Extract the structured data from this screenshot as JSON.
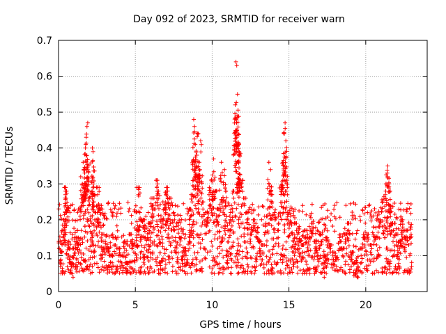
{
  "chart_data": {
    "type": "scatter",
    "title": "Day 092 of 2023, SRMTID for receiver warn",
    "xlabel": "GPS time / hours",
    "ylabel": "SRMTID / TECUs",
    "xlim": [
      0,
      24
    ],
    "ylim": [
      0,
      0.7
    ],
    "xticks": [
      0,
      5,
      10,
      15,
      20
    ],
    "xtick_labels": [
      "0",
      "5",
      "10",
      "15",
      "20"
    ],
    "yticks": [
      0,
      0.1,
      0.2,
      0.3,
      0.4,
      0.5,
      0.6,
      0.7
    ],
    "ytick_labels": [
      "0",
      "0.1",
      "0.2",
      "0.3",
      "0.4",
      "0.5",
      "0.6",
      "0.7"
    ],
    "grid": true,
    "marker": "+",
    "marker_color": "#ff0000",
    "data_span_hours": [
      0,
      23
    ],
    "series": [
      {
        "name": "SRMTID",
        "points": [
          [
            0.05,
            0.12
          ],
          [
            0.15,
            0.09
          ],
          [
            0.3,
            0.15
          ],
          [
            0.4,
            0.18
          ],
          [
            0.5,
            0.2
          ],
          [
            0.45,
            0.27
          ],
          [
            0.5,
            0.26
          ],
          [
            0.7,
            0.12
          ],
          [
            0.8,
            0.06
          ],
          [
            0.9,
            0.05
          ],
          [
            1.0,
            0.1
          ],
          [
            1.1,
            0.13
          ],
          [
            1.3,
            0.15
          ],
          [
            1.4,
            0.21
          ],
          [
            1.55,
            0.3
          ],
          [
            1.6,
            0.36
          ],
          [
            1.7,
            0.33
          ],
          [
            1.75,
            0.4
          ],
          [
            1.8,
            0.43
          ],
          [
            1.85,
            0.46
          ],
          [
            1.9,
            0.47
          ],
          [
            1.95,
            0.26
          ],
          [
            2.1,
            0.21
          ],
          [
            2.2,
            0.4
          ],
          [
            2.25,
            0.39
          ],
          [
            2.3,
            0.25
          ],
          [
            2.45,
            0.2
          ],
          [
            2.55,
            0.27
          ],
          [
            2.7,
            0.22
          ],
          [
            2.9,
            0.14
          ],
          [
            3.1,
            0.12
          ],
          [
            3.3,
            0.1
          ],
          [
            3.5,
            0.08
          ],
          [
            3.7,
            0.13
          ],
          [
            3.9,
            0.1
          ],
          [
            4.1,
            0.08
          ],
          [
            4.3,
            0.12
          ],
          [
            4.5,
            0.06
          ],
          [
            4.7,
            0.14
          ],
          [
            4.9,
            0.11
          ],
          [
            5.1,
            0.15
          ],
          [
            5.2,
            0.27
          ],
          [
            5.3,
            0.2
          ],
          [
            5.5,
            0.18
          ],
          [
            5.7,
            0.13
          ],
          [
            5.9,
            0.17
          ],
          [
            6.1,
            0.24
          ],
          [
            6.2,
            0.21
          ],
          [
            6.4,
            0.29
          ],
          [
            6.5,
            0.28
          ],
          [
            6.7,
            0.18
          ],
          [
            6.9,
            0.23
          ],
          [
            7.0,
            0.27
          ],
          [
            7.1,
            0.26
          ],
          [
            7.3,
            0.24
          ],
          [
            7.5,
            0.22
          ],
          [
            7.7,
            0.19
          ],
          [
            7.9,
            0.13
          ],
          [
            8.1,
            0.07
          ],
          [
            8.3,
            0.1
          ],
          [
            8.5,
            0.14
          ],
          [
            8.6,
            0.21
          ],
          [
            8.7,
            0.25
          ],
          [
            8.8,
            0.48
          ],
          [
            8.85,
            0.46
          ],
          [
            8.9,
            0.41
          ],
          [
            9.0,
            0.38
          ],
          [
            9.1,
            0.44
          ],
          [
            9.2,
            0.34
          ],
          [
            9.25,
            0.42
          ],
          [
            9.4,
            0.23
          ],
          [
            9.6,
            0.2
          ],
          [
            9.8,
            0.27
          ],
          [
            9.95,
            0.31
          ],
          [
            10.1,
            0.37
          ],
          [
            10.2,
            0.26
          ],
          [
            10.4,
            0.21
          ],
          [
            10.6,
            0.36
          ],
          [
            10.8,
            0.34
          ],
          [
            10.9,
            0.28
          ],
          [
            11.0,
            0.08
          ],
          [
            11.1,
            0.15
          ],
          [
            11.2,
            0.22
          ],
          [
            11.4,
            0.26
          ],
          [
            11.5,
            0.52
          ],
          [
            11.55,
            0.64
          ],
          [
            11.6,
            0.63
          ],
          [
            11.65,
            0.55
          ],
          [
            11.7,
            0.44
          ],
          [
            11.75,
            0.41
          ],
          [
            11.8,
            0.38
          ],
          [
            11.9,
            0.29
          ],
          [
            12.1,
            0.24
          ],
          [
            12.3,
            0.2
          ],
          [
            12.5,
            0.14
          ],
          [
            12.7,
            0.18
          ],
          [
            12.9,
            0.15
          ],
          [
            13.1,
            0.12
          ],
          [
            13.3,
            0.11
          ],
          [
            13.5,
            0.19
          ],
          [
            13.7,
            0.3
          ],
          [
            13.8,
            0.34
          ],
          [
            13.9,
            0.25
          ],
          [
            14.1,
            0.2
          ],
          [
            14.3,
            0.15
          ],
          [
            14.5,
            0.29
          ],
          [
            14.6,
            0.36
          ],
          [
            14.7,
            0.44
          ],
          [
            14.75,
            0.47
          ],
          [
            14.8,
            0.42
          ],
          [
            14.9,
            0.27
          ],
          [
            15.1,
            0.19
          ],
          [
            15.3,
            0.14
          ],
          [
            15.5,
            0.17
          ],
          [
            15.7,
            0.12
          ],
          [
            15.9,
            0.11
          ],
          [
            16.1,
            0.15
          ],
          [
            16.3,
            0.13
          ],
          [
            16.5,
            0.17
          ],
          [
            16.7,
            0.12
          ],
          [
            16.9,
            0.1
          ],
          [
            17.1,
            0.14
          ],
          [
            17.3,
            0.08
          ],
          [
            17.5,
            0.13
          ],
          [
            17.7,
            0.11
          ],
          [
            17.9,
            0.09
          ],
          [
            18.1,
            0.07
          ],
          [
            18.3,
            0.12
          ],
          [
            18.5,
            0.1
          ],
          [
            18.7,
            0.14
          ],
          [
            18.9,
            0.17
          ],
          [
            19.1,
            0.09
          ],
          [
            19.3,
            0.06
          ],
          [
            19.5,
            0.04
          ],
          [
            19.7,
            0.1
          ],
          [
            19.9,
            0.13
          ],
          [
            20.1,
            0.14
          ],
          [
            20.3,
            0.11
          ],
          [
            20.5,
            0.16
          ],
          [
            20.7,
            0.13
          ],
          [
            20.9,
            0.18
          ],
          [
            21.1,
            0.25
          ],
          [
            21.3,
            0.28
          ],
          [
            21.4,
            0.33
          ],
          [
            21.5,
            0.3
          ],
          [
            21.6,
            0.22
          ],
          [
            21.8,
            0.17
          ],
          [
            22.0,
            0.14
          ],
          [
            22.2,
            0.12
          ],
          [
            22.4,
            0.18
          ],
          [
            22.6,
            0.15
          ],
          [
            22.8,
            0.13
          ],
          [
            22.95,
            0.16
          ]
        ]
      }
    ]
  }
}
